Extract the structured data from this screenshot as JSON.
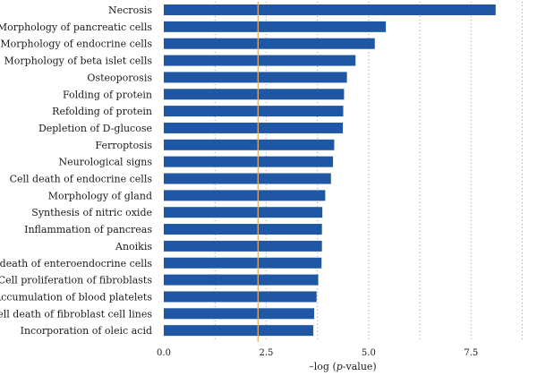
{
  "chart_data": {
    "type": "bar",
    "orientation": "horizontal",
    "categories": [
      "Necrosis",
      "Morphology of pancreatic cells",
      "Morphology of endocrine cells",
      "Morphology of beta islet cells",
      "Osteoporosis",
      "Folding of protein",
      "Refolding of protein",
      "Depletion of D-glucose",
      "Ferroptosis",
      "Neurological signs",
      "Cell death of endocrine cells",
      "Morphology of gland",
      "Synthesis of nitric oxide",
      "Inflammation of pancreas",
      "Anoikis",
      "Cell death of enteroendocrine cells",
      "Cell proliferation of fibroblasts",
      "Accumulation of blood platelets",
      "Cell death of fibroblast cell lines",
      "Incorporation of oleic acid"
    ],
    "values": [
      8.1,
      5.42,
      5.15,
      4.68,
      4.47,
      4.4,
      4.38,
      4.37,
      4.16,
      4.13,
      4.08,
      3.94,
      3.87,
      3.86,
      3.86,
      3.85,
      3.77,
      3.73,
      3.67,
      3.65
    ],
    "threshold": 2.3,
    "xlim": [
      0,
      9.0
    ],
    "xticks": [
      0,
      2.5,
      5,
      7.5
    ],
    "xtick_labels": [
      "0.0",
      "2.5",
      "5.0",
      "7.5"
    ],
    "xlabel_prefix": "–log (",
    "xlabel_italic": "p",
    "xlabel_suffix": "-value)",
    "grid": "vertical-dotted",
    "bar_color": "#1f57a5",
    "threshold_color": "#e0ae72"
  }
}
